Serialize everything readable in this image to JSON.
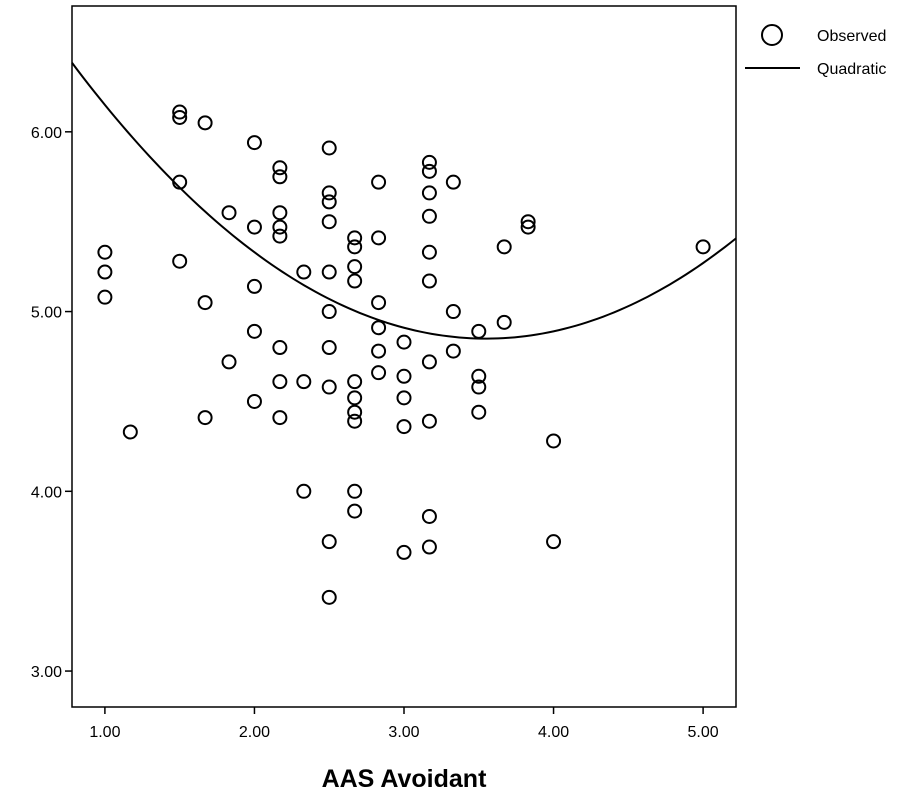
{
  "chart_data": {
    "type": "scatter",
    "title": "",
    "xlabel": "AAS Avoidant",
    "ylabel": "",
    "xlim": [
      0.78,
      5.22
    ],
    "ylim": [
      2.8,
      6.7
    ],
    "x_ticks": [
      {
        "value": 1,
        "label": "1.00"
      },
      {
        "value": 2,
        "label": "2.00"
      },
      {
        "value": 3,
        "label": "3.00"
      },
      {
        "value": 4,
        "label": "4.00"
      },
      {
        "value": 5,
        "label": "5.00"
      }
    ],
    "y_ticks": [
      {
        "value": 3,
        "label": "3.00"
      },
      {
        "value": 4,
        "label": "4.00"
      },
      {
        "value": 5,
        "label": "5.00"
      },
      {
        "value": 6,
        "label": "6.00"
      }
    ],
    "grid": false,
    "legend": {
      "placement": "top-right, outside plot",
      "entries": [
        {
          "label": "Observed",
          "marker": "open-circle"
        },
        {
          "label": "Quadratic",
          "marker": "line"
        }
      ]
    },
    "colors": {
      "marker": "#000000",
      "line": "#000000",
      "background": "#ffffff"
    },
    "series": [
      {
        "name": "Observed",
        "type": "scatter",
        "points": [
          [
            1.0,
            5.33
          ],
          [
            1.0,
            5.22
          ],
          [
            1.0,
            5.08
          ],
          [
            1.17,
            4.33
          ],
          [
            1.5,
            6.11
          ],
          [
            1.5,
            6.08
          ],
          [
            1.5,
            5.72
          ],
          [
            1.5,
            5.28
          ],
          [
            1.67,
            6.05
          ],
          [
            1.67,
            5.05
          ],
          [
            1.67,
            4.41
          ],
          [
            1.83,
            5.55
          ],
          [
            1.83,
            4.72
          ],
          [
            2.0,
            5.94
          ],
          [
            2.0,
            5.47
          ],
          [
            2.0,
            5.14
          ],
          [
            2.0,
            4.89
          ],
          [
            2.0,
            4.5
          ],
          [
            2.17,
            5.8
          ],
          [
            2.17,
            5.75
          ],
          [
            2.17,
            5.55
          ],
          [
            2.17,
            5.47
          ],
          [
            2.17,
            5.42
          ],
          [
            2.17,
            4.8
          ],
          [
            2.17,
            4.61
          ],
          [
            2.17,
            4.41
          ],
          [
            2.33,
            5.22
          ],
          [
            2.33,
            4.61
          ],
          [
            2.33,
            4.0
          ],
          [
            2.5,
            5.91
          ],
          [
            2.5,
            5.66
          ],
          [
            2.5,
            5.61
          ],
          [
            2.5,
            5.5
          ],
          [
            2.5,
            5.22
          ],
          [
            2.5,
            5.0
          ],
          [
            2.5,
            4.8
          ],
          [
            2.5,
            4.58
          ],
          [
            2.5,
            3.72
          ],
          [
            2.5,
            3.41
          ],
          [
            2.67,
            5.41
          ],
          [
            2.67,
            5.36
          ],
          [
            2.67,
            5.25
          ],
          [
            2.67,
            5.17
          ],
          [
            2.67,
            4.61
          ],
          [
            2.67,
            4.52
          ],
          [
            2.67,
            4.44
          ],
          [
            2.67,
            4.39
          ],
          [
            2.67,
            4.0
          ],
          [
            2.67,
            3.89
          ],
          [
            2.83,
            5.72
          ],
          [
            2.83,
            5.41
          ],
          [
            2.83,
            5.05
          ],
          [
            2.83,
            4.91
          ],
          [
            2.83,
            4.78
          ],
          [
            2.83,
            4.66
          ],
          [
            3.0,
            4.83
          ],
          [
            3.0,
            4.64
          ],
          [
            3.0,
            4.52
          ],
          [
            3.0,
            4.36
          ],
          [
            3.0,
            3.66
          ],
          [
            3.17,
            5.83
          ],
          [
            3.17,
            5.78
          ],
          [
            3.17,
            5.66
          ],
          [
            3.17,
            5.53
          ],
          [
            3.17,
            5.33
          ],
          [
            3.17,
            5.17
          ],
          [
            3.17,
            4.72
          ],
          [
            3.17,
            4.39
          ],
          [
            3.17,
            3.86
          ],
          [
            3.17,
            3.69
          ],
          [
            3.33,
            5.72
          ],
          [
            3.33,
            5.0
          ],
          [
            3.33,
            4.78
          ],
          [
            3.5,
            4.89
          ],
          [
            3.5,
            4.64
          ],
          [
            3.5,
            4.58
          ],
          [
            3.5,
            4.44
          ],
          [
            3.67,
            5.36
          ],
          [
            3.67,
            4.94
          ],
          [
            3.83,
            5.5
          ],
          [
            3.83,
            5.47
          ],
          [
            4.0,
            4.28
          ],
          [
            4.0,
            3.72
          ],
          [
            5.0,
            5.36
          ]
        ]
      },
      {
        "name": "Quadratic",
        "type": "line",
        "coefficients": {
          "a": 0.2,
          "b": -1.42,
          "c": 7.37
        },
        "equation": "y = a*x^2 + b*x + c"
      }
    ]
  }
}
